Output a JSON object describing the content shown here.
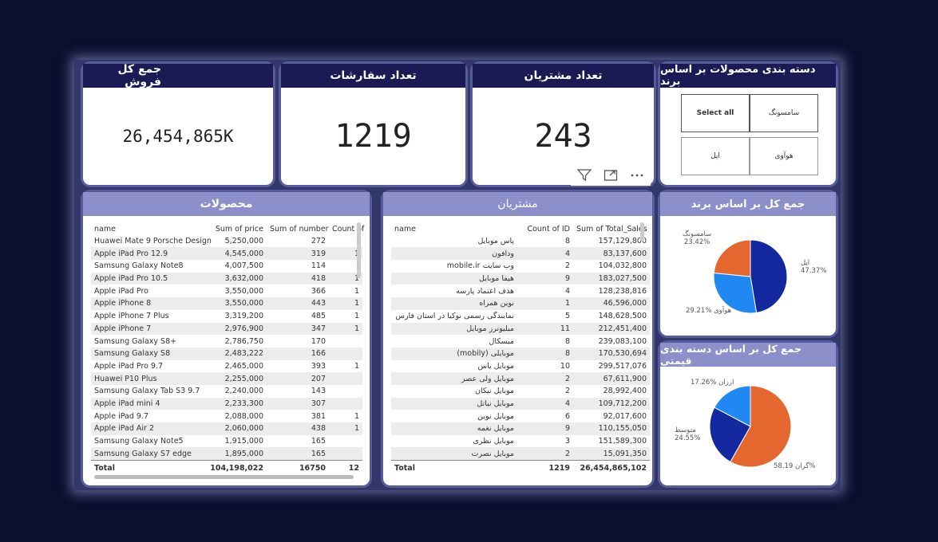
{
  "kpis": {
    "total_sales": {
      "title": "جمع کل فروش",
      "value": "26,454,865K"
    },
    "orders": {
      "title": "تعداد سفارشات",
      "value": "1219"
    },
    "customers": {
      "title": "تعداد مشتریان",
      "value": "243"
    }
  },
  "slicer": {
    "title": "دسته بندی محصولات بر اساس برند",
    "options": [
      "سامسونگ",
      "Select all",
      "هوآوی",
      "اپل"
    ]
  },
  "products": {
    "title": "محصولات",
    "columns": [
      "name",
      "Sum of price",
      "Sum of number",
      "Count of"
    ],
    "rows": [
      [
        "Huawei Mate 9 Porsche Design",
        "5,250,000",
        "272",
        ""
      ],
      [
        "Apple iPad Pro 12.9",
        "4,545,000",
        "319",
        "1"
      ],
      [
        "Samsung Galaxy Note8",
        "4,007,500",
        "114",
        ""
      ],
      [
        "Apple iPad Pro 10.5",
        "3,632,000",
        "418",
        "1"
      ],
      [
        "Apple iPad Pro",
        "3,550,000",
        "366",
        "1"
      ],
      [
        "Apple iPhone 8",
        "3,550,000",
        "443",
        "1"
      ],
      [
        "Apple iPhone 7 Plus",
        "3,319,200",
        "485",
        "1"
      ],
      [
        "Apple iPhone 7",
        "2,976,900",
        "347",
        "1"
      ],
      [
        "Samsung Galaxy S8+",
        "2,786,750",
        "170",
        ""
      ],
      [
        "Samsung Galaxy S8",
        "2,483,222",
        "166",
        ""
      ],
      [
        "Apple iPad Pro 9.7",
        "2,465,000",
        "393",
        "1"
      ],
      [
        "Huawei P10 Plus",
        "2,255,000",
        "207",
        ""
      ],
      [
        "Samsung Galaxy Tab S3 9.7",
        "2,240,000",
        "143",
        ""
      ],
      [
        "Apple iPad mini 4",
        "2,233,300",
        "307",
        ""
      ],
      [
        "Apple iPad 9.7",
        "2,088,000",
        "381",
        "1"
      ],
      [
        "Apple iPad Air 2",
        "2,060,000",
        "438",
        "1"
      ],
      [
        "Samsung Galaxy Note5",
        "1,915,000",
        "165",
        ""
      ],
      [
        "Samsung Galaxy S7 edge",
        "1,895,000",
        "165",
        ""
      ]
    ],
    "total": [
      "Total",
      "104,198,022",
      "16750",
      "12"
    ]
  },
  "customers_table": {
    "title": "مشتریان",
    "columns": [
      "name",
      "Count of ID",
      "Sum of Total_Sales"
    ],
    "rows": [
      [
        "پاس موبایل",
        "8",
        "157,129,800"
      ],
      [
        "ودافون",
        "4",
        "83,137,600"
      ],
      [
        "وب سایت mobile.ir",
        "2",
        "104,032,800"
      ],
      [
        "هیفا موبایل",
        "9",
        "183,027,500"
      ],
      [
        "هدف اعتماد پارسه",
        "4",
        "128,238,816"
      ],
      [
        "نوین همراه",
        "1",
        "46,596,000"
      ],
      [
        "نمایندگی رسمی نوکیا در استان فارس",
        "5",
        "148,628,500"
      ],
      [
        "میلیونرز موبایل",
        "11",
        "212,451,400"
      ],
      [
        "میسکال",
        "8",
        "239,083,100"
      ],
      [
        "موبایلی (mobily)",
        "8",
        "170,530,694"
      ],
      [
        "موبایل یاس",
        "10",
        "299,517,076"
      ],
      [
        "موبایل ولی عصر",
        "2",
        "67,611,900"
      ],
      [
        "موبایل نیکان",
        "2",
        "28,992,400"
      ],
      [
        "موبایل نیاتل",
        "4",
        "109,712,200"
      ],
      [
        "موبایل نوین",
        "6",
        "92,017,600"
      ],
      [
        "موبایل نغمه",
        "9",
        "110,155,050"
      ],
      [
        "موبایل نظری",
        "3",
        "151,589,300"
      ],
      [
        "موبایل نصرت",
        "2",
        "15,091,350"
      ]
    ],
    "total": [
      "Total",
      "1219",
      "26,454,865,102"
    ]
  },
  "brand_pie": {
    "title": "جمع کل بر اساس برند",
    "labels": {
      "samsung": "سامسونگ",
      "samsung_pct": "23.42%",
      "apple": "اپل",
      "apple_pct": "47.37%",
      "huawei": "هوآوی",
      "huawei_pct": "29.21%"
    }
  },
  "price_pie": {
    "title": "جمع کل بر اساس دسته بندی قیمتی",
    "labels": {
      "cheap": "ارزان",
      "cheap_pct": "17.26%",
      "mid": "متوسط",
      "mid_pct": "24.55%",
      "exp": "گران",
      "exp_pct": "58.19%"
    }
  },
  "chart_data": [
    {
      "type": "pie",
      "title": "جمع کل بر اساس برند",
      "labels": [
        "اپل",
        "هوآوی",
        "سامسونگ"
      ],
      "values": [
        47.37,
        29.21,
        23.42
      ],
      "colors": [
        "#1428a0",
        "#1f88f2",
        "#e4672f"
      ]
    },
    {
      "type": "pie",
      "title": "جمع کل بر اساس دسته بندی قیمتی",
      "labels": [
        "گران",
        "متوسط",
        "ارزان"
      ],
      "values": [
        58.19,
        24.55,
        17.26
      ],
      "colors": [
        "#e4672f",
        "#1428a0",
        "#1f88f2"
      ]
    }
  ]
}
